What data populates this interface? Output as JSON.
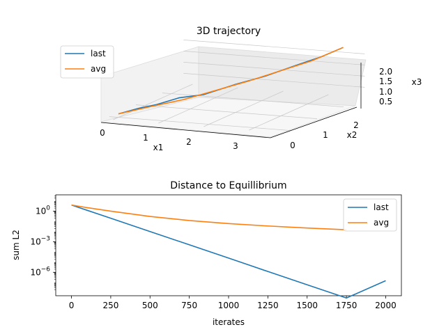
{
  "figure": {
    "top": {
      "chart_data": {
        "type": "line",
        "projection": "3d",
        "title": "3D trajectory",
        "xlabel": "x1",
        "ylabel": "x2",
        "zlabel": "x3",
        "x_ticks": [
          "0",
          "1",
          "2",
          "3"
        ],
        "y_ticks": [
          "0",
          "1",
          "2"
        ],
        "z_ticks": [
          "0.5",
          "1.0",
          "1.5",
          "2.0"
        ],
        "xlim": [
          -0.2,
          3.8
        ],
        "ylim": [
          -0.2,
          2.8
        ],
        "zlim": [
          0.2,
          2.4
        ],
        "legend": {
          "placement": "upper-left",
          "entries": [
            "last",
            "avg"
          ]
        },
        "series": [
          {
            "name": "last",
            "color": "#1f77b4",
            "points": [
              [
                0.0,
                0.0,
                0.2
              ],
              [
                0.3,
                0.25,
                0.3
              ],
              [
                0.55,
                0.5,
                0.5
              ],
              [
                0.9,
                0.75,
                0.6
              ],
              [
                1.3,
                1.0,
                0.8
              ],
              [
                1.8,
                1.3,
                1.1
              ],
              [
                2.3,
                1.6,
                1.4
              ],
              [
                2.8,
                1.9,
                1.8
              ],
              [
                3.2,
                2.2,
                2.1
              ],
              [
                3.5,
                2.5,
                2.4
              ]
            ]
          },
          {
            "name": "avg",
            "color": "#ff7f0e",
            "points": [
              [
                0.0,
                0.0,
                0.2
              ],
              [
                0.5,
                0.4,
                0.4
              ],
              [
                1.0,
                0.75,
                0.6
              ],
              [
                1.5,
                1.1,
                0.9
              ],
              [
                2.0,
                1.45,
                1.2
              ],
              [
                2.5,
                1.8,
                1.55
              ],
              [
                3.0,
                2.15,
                1.9
              ],
              [
                3.5,
                2.5,
                2.4
              ]
            ]
          }
        ]
      }
    },
    "bottom": {
      "chart_data": {
        "type": "line",
        "title": "Distance to Equillibrium",
        "xlabel": "iterates",
        "ylabel": "sum L2",
        "y_scale": "log",
        "xlim": [
          -100,
          2100
        ],
        "ylim_log10": [
          -8.3,
          1.6
        ],
        "x_ticks": [
          0,
          250,
          500,
          750,
          1000,
          1250,
          1500,
          1750,
          2000
        ],
        "y_ticks": [
          {
            "exp": 0,
            "mantissa": "10",
            "sup": "0"
          },
          {
            "exp": -3,
            "mantissa": "10",
            "sup": "−3"
          },
          {
            "exp": -6,
            "mantissa": "10",
            "sup": "−6"
          }
        ],
        "legend": {
          "placement": "upper-right",
          "entries": [
            "last",
            "avg"
          ]
        },
        "series": [
          {
            "name": "last",
            "color": "#1f77b4",
            "x": [
              0,
              250,
              500,
              750,
              1000,
              1250,
              1500,
              1750,
              2000
            ],
            "y": [
              4.0,
              0.2,
              0.01,
              0.0005,
              2.5e-05,
              1.2e-06,
              6e-08,
              3e-09,
              1.5e-07
            ]
          },
          {
            "name": "avg",
            "color": "#ff7f0e",
            "x": [
              0,
              100,
              250,
              500,
              750,
              1000,
              1250,
              1500,
              1750
            ],
            "y": [
              4.0,
              2.2,
              1.0,
              0.3,
              0.12,
              0.06,
              0.035,
              0.022,
              0.015
            ]
          }
        ]
      }
    }
  }
}
